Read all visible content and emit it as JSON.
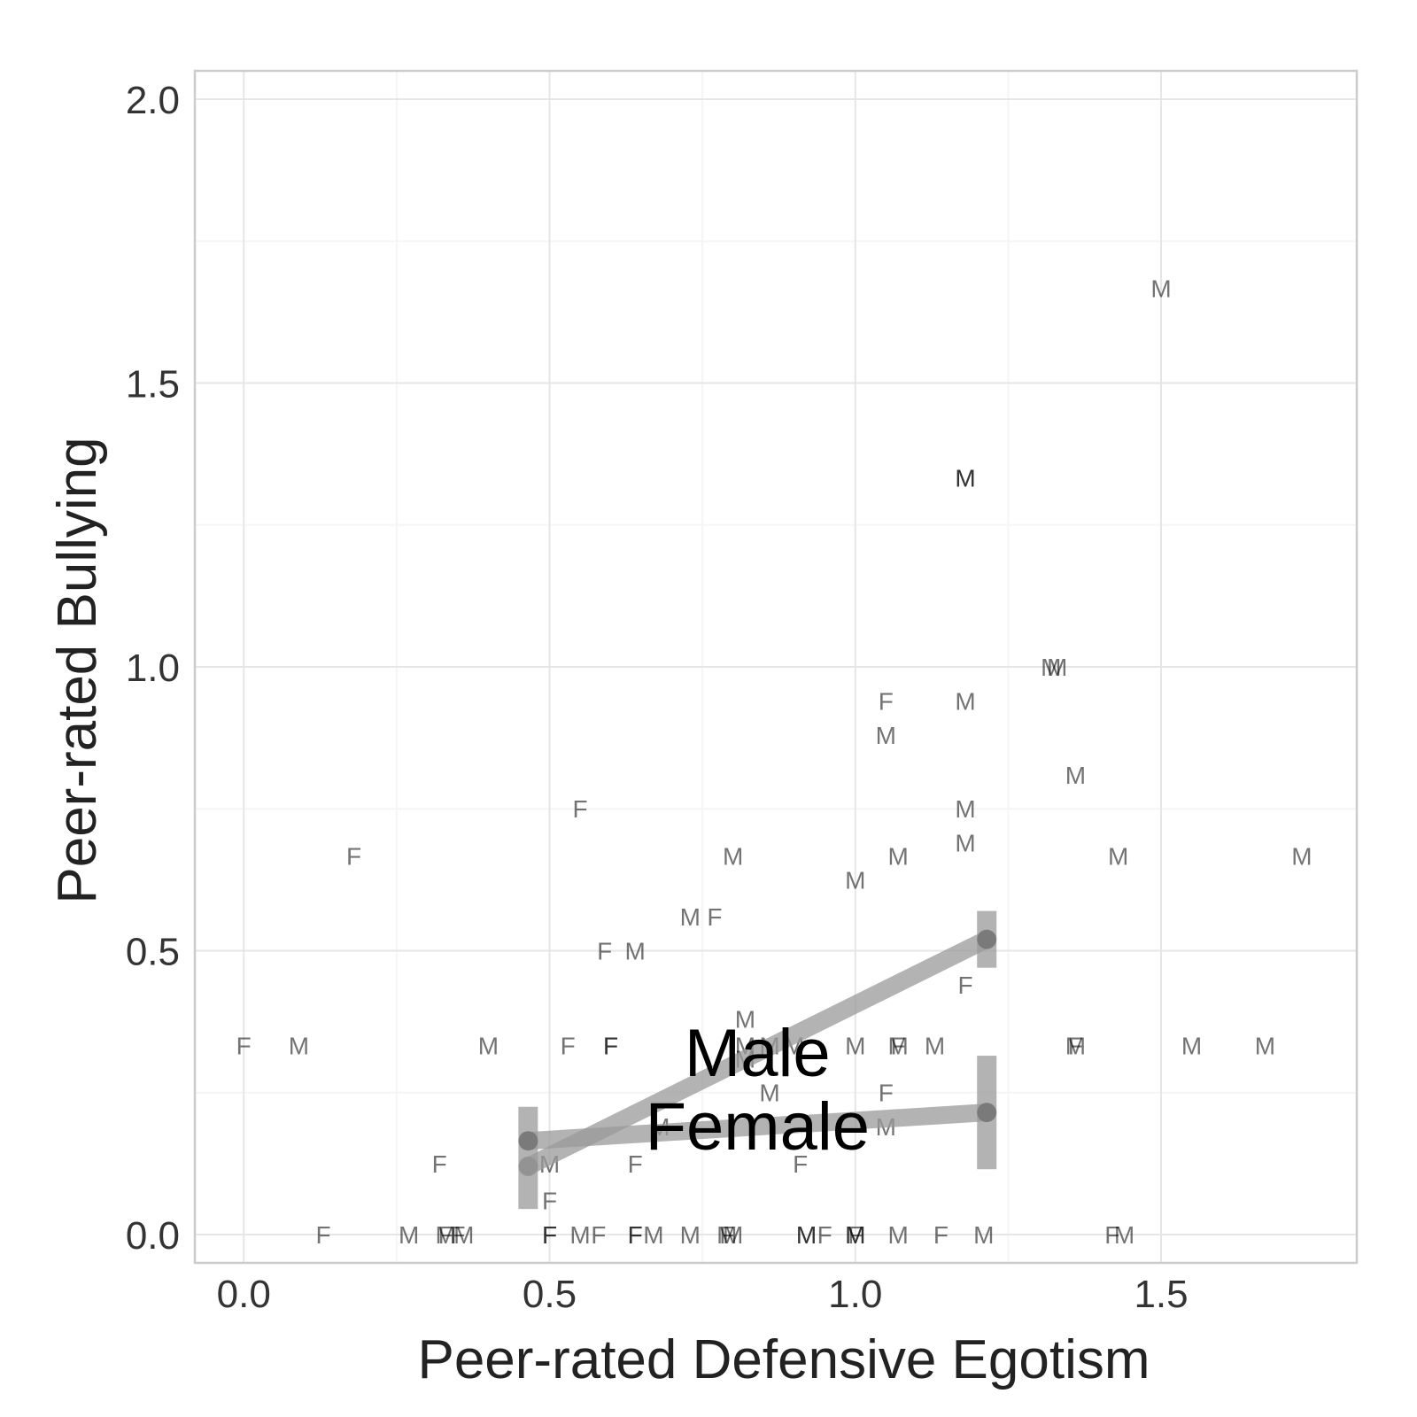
{
  "chart_data": {
    "type": "scatter",
    "xlabel": "Peer-rated Defensive Egotism",
    "ylabel": "Peer-rated Bullying",
    "xlim": [
      -0.08,
      1.82
    ],
    "ylim": [
      -0.05,
      2.05
    ],
    "x_ticks": [
      {
        "value": 0.0,
        "label": "0.0"
      },
      {
        "value": 0.5,
        "label": "0.5"
      },
      {
        "value": 1.0,
        "label": "1.0"
      },
      {
        "value": 1.5,
        "label": "1.5"
      }
    ],
    "y_ticks": [
      {
        "value": 0.0,
        "label": "0.0"
      },
      {
        "value": 0.5,
        "label": "0.5"
      },
      {
        "value": 1.0,
        "label": "1.0"
      },
      {
        "value": 1.5,
        "label": "1.5"
      },
      {
        "value": 2.0,
        "label": "2.0"
      }
    ],
    "grid": true,
    "points": [
      {
        "x": 1.5,
        "y": 1.667,
        "label": "M"
      },
      {
        "x": 1.18,
        "y": 1.333,
        "label": "M"
      },
      {
        "x": 1.18,
        "y": 1.333,
        "label": "M"
      },
      {
        "x": 1.32,
        "y": 1.0,
        "label": "M"
      },
      {
        "x": 1.33,
        "y": 1.0,
        "label": "M"
      },
      {
        "x": 1.05,
        "y": 0.94,
        "label": "F"
      },
      {
        "x": 1.18,
        "y": 0.94,
        "label": "M"
      },
      {
        "x": 1.05,
        "y": 0.88,
        "label": "M"
      },
      {
        "x": 1.36,
        "y": 0.81,
        "label": "M"
      },
      {
        "x": 0.55,
        "y": 0.75,
        "label": "F"
      },
      {
        "x": 1.18,
        "y": 0.75,
        "label": "M"
      },
      {
        "x": 1.18,
        "y": 0.69,
        "label": "M"
      },
      {
        "x": 0.18,
        "y": 0.667,
        "label": "F"
      },
      {
        "x": 0.8,
        "y": 0.667,
        "label": "M"
      },
      {
        "x": 1.07,
        "y": 0.667,
        "label": "M"
      },
      {
        "x": 1.43,
        "y": 0.667,
        "label": "M"
      },
      {
        "x": 1.73,
        "y": 0.667,
        "label": "M"
      },
      {
        "x": 1.0,
        "y": 0.625,
        "label": "M"
      },
      {
        "x": 0.73,
        "y": 0.56,
        "label": "M"
      },
      {
        "x": 0.77,
        "y": 0.56,
        "label": "F"
      },
      {
        "x": 0.59,
        "y": 0.5,
        "label": "F"
      },
      {
        "x": 0.64,
        "y": 0.5,
        "label": "M"
      },
      {
        "x": 1.18,
        "y": 0.44,
        "label": "F"
      },
      {
        "x": 0.82,
        "y": 0.38,
        "label": "M"
      },
      {
        "x": 0.0,
        "y": 0.333,
        "label": "F"
      },
      {
        "x": 0.09,
        "y": 0.333,
        "label": "M"
      },
      {
        "x": 0.4,
        "y": 0.333,
        "label": "M"
      },
      {
        "x": 0.53,
        "y": 0.333,
        "label": "F"
      },
      {
        "x": 0.6,
        "y": 0.333,
        "label": "F"
      },
      {
        "x": 0.6,
        "y": 0.333,
        "label": "F"
      },
      {
        "x": 0.82,
        "y": 0.333,
        "label": "M"
      },
      {
        "x": 0.86,
        "y": 0.333,
        "label": "M"
      },
      {
        "x": 0.9,
        "y": 0.333,
        "label": "M"
      },
      {
        "x": 1.0,
        "y": 0.333,
        "label": "M"
      },
      {
        "x": 1.07,
        "y": 0.333,
        "label": "M"
      },
      {
        "x": 1.07,
        "y": 0.333,
        "label": "F"
      },
      {
        "x": 1.13,
        "y": 0.333,
        "label": "M"
      },
      {
        "x": 1.36,
        "y": 0.333,
        "label": "M"
      },
      {
        "x": 1.36,
        "y": 0.333,
        "label": "F"
      },
      {
        "x": 1.55,
        "y": 0.333,
        "label": "M"
      },
      {
        "x": 1.67,
        "y": 0.333,
        "label": "M"
      },
      {
        "x": 0.82,
        "y": 0.31,
        "label": "M"
      },
      {
        "x": 0.86,
        "y": 0.25,
        "label": "M"
      },
      {
        "x": 1.05,
        "y": 0.25,
        "label": "F"
      },
      {
        "x": 0.68,
        "y": 0.19,
        "label": "M"
      },
      {
        "x": 1.05,
        "y": 0.19,
        "label": "M"
      },
      {
        "x": 0.32,
        "y": 0.125,
        "label": "F"
      },
      {
        "x": 0.5,
        "y": 0.125,
        "label": "M"
      },
      {
        "x": 0.64,
        "y": 0.125,
        "label": "F"
      },
      {
        "x": 0.91,
        "y": 0.125,
        "label": "F"
      },
      {
        "x": 0.5,
        "y": 0.06,
        "label": "F"
      },
      {
        "x": 0.13,
        "y": 0.0,
        "label": "F"
      },
      {
        "x": 0.27,
        "y": 0.0,
        "label": "M"
      },
      {
        "x": 0.33,
        "y": 0.0,
        "label": "M"
      },
      {
        "x": 0.33,
        "y": 0.0,
        "label": "F"
      },
      {
        "x": 0.35,
        "y": 0.0,
        "label": "F"
      },
      {
        "x": 0.36,
        "y": 0.0,
        "label": "M"
      },
      {
        "x": 0.5,
        "y": 0.0,
        "label": "F"
      },
      {
        "x": 0.5,
        "y": 0.0,
        "label": "F"
      },
      {
        "x": 0.55,
        "y": 0.0,
        "label": "M"
      },
      {
        "x": 0.58,
        "y": 0.0,
        "label": "F"
      },
      {
        "x": 0.64,
        "y": 0.0,
        "label": "F"
      },
      {
        "x": 0.64,
        "y": 0.0,
        "label": "F"
      },
      {
        "x": 0.67,
        "y": 0.0,
        "label": "M"
      },
      {
        "x": 0.73,
        "y": 0.0,
        "label": "M"
      },
      {
        "x": 0.79,
        "y": 0.0,
        "label": "M"
      },
      {
        "x": 0.79,
        "y": 0.0,
        "label": "F"
      },
      {
        "x": 0.8,
        "y": 0.0,
        "label": "M"
      },
      {
        "x": 0.92,
        "y": 0.0,
        "label": "M"
      },
      {
        "x": 0.92,
        "y": 0.0,
        "label": "M"
      },
      {
        "x": 0.95,
        "y": 0.0,
        "label": "F"
      },
      {
        "x": 1.0,
        "y": 0.0,
        "label": "M"
      },
      {
        "x": 1.0,
        "y": 0.0,
        "label": "F"
      },
      {
        "x": 1.0,
        "y": 0.0,
        "label": "M"
      },
      {
        "x": 1.07,
        "y": 0.0,
        "label": "M"
      },
      {
        "x": 1.14,
        "y": 0.0,
        "label": "F"
      },
      {
        "x": 1.21,
        "y": 0.0,
        "label": "M"
      },
      {
        "x": 1.42,
        "y": 0.0,
        "label": "F"
      },
      {
        "x": 1.44,
        "y": 0.0,
        "label": "M"
      }
    ],
    "series": [
      {
        "name": "Male",
        "x": [
          0.465,
          1.215
        ],
        "y": [
          0.12,
          0.52
        ],
        "ci": [
          [
            0.12,
            0.12
          ],
          [
            0.47,
            0.57
          ]
        ]
      },
      {
        "name": "Female",
        "x": [
          0.465,
          1.215
        ],
        "y": [
          0.165,
          0.215
        ],
        "ci": [
          [
            0.045,
            0.225
          ],
          [
            0.115,
            0.315
          ]
        ]
      }
    ],
    "colors": {
      "background": "#ffffff",
      "panel_border": "#cccccc",
      "grid_major": "#e6e6e6",
      "grid_minor": "#f5f5f5",
      "fit_line": "#999999",
      "fit_point": "#6e6e6e"
    }
  }
}
